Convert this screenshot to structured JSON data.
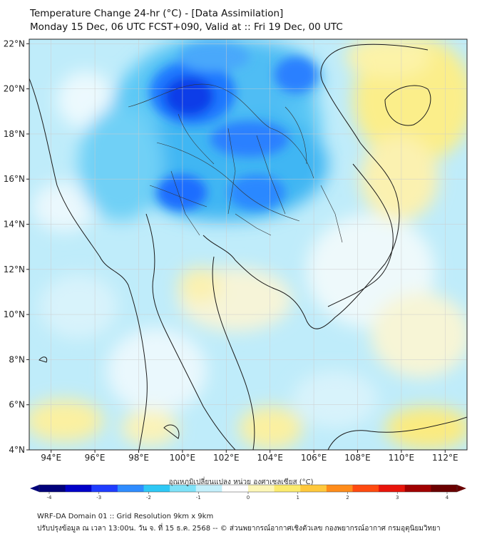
{
  "header": {
    "title": "Temperature Change 24-hr (°C) - [Data Assimilation]",
    "subtitle": "Monday 15 Dec, 06 UTC FCST+090, Valid at :: Fri 19 Dec, 00 UTC"
  },
  "map": {
    "lat_labels": [
      "22°N",
      "20°N",
      "18°N",
      "16°N",
      "14°N",
      "12°N",
      "10°N",
      "8°N",
      "6°N",
      "4°N"
    ],
    "lon_labels": [
      "94°E",
      "96°E",
      "98°E",
      "100°E",
      "102°E",
      "104°E",
      "106°E",
      "108°E",
      "110°E",
      "112°E"
    ]
  },
  "colorbar": {
    "title": "อุณหภูมิเปลี่ยนแปลง หน่วย องศาเซลเซียส (°C)",
    "ticks": [
      "-4",
      "-3",
      "-2",
      "-1",
      "0",
      "1",
      "2",
      "3",
      "4"
    ],
    "colors": [
      "#00007a",
      "#0000c8",
      "#1f3cff",
      "#2f8cff",
      "#2ec8f5",
      "#7fe2f8",
      "#c4f0fb",
      "#ffffff",
      "#fdf7b8",
      "#fbeb6e",
      "#ffc83c",
      "#ff8c1a",
      "#ff4a10",
      "#e8140a",
      "#a00000",
      "#6a0000"
    ]
  },
  "footer": {
    "line1": "WRF-DA Domain 01 :: Grid Resolution 9km x 9km",
    "line2": "ปรับปรุงข้อมูล ณ เวลา 13:00น. วัน จ. ที่ 15 ธ.ค. 2568 -- © ส่วนพยากรณ์อากาศเชิงตัวเลข กองพยากรณ์อากาศ กรมอุตุนิยมวิทยา"
  }
}
